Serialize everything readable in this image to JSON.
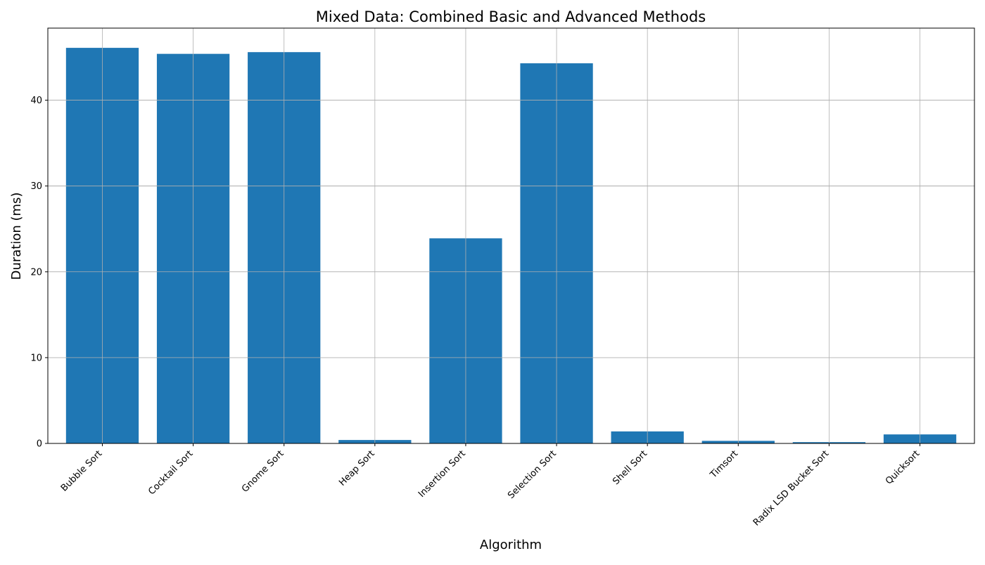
{
  "chart_data": {
    "type": "bar",
    "title": "Mixed Data: Combined Basic and Advanced Methods",
    "xlabel": "Algorithm",
    "ylabel": "Duration (ms)",
    "categories": [
      "Bubble Sort",
      "Cocktail Sort",
      "Gnome Sort",
      "Heap Sort",
      "Insertion Sort",
      "Selection Sort",
      "Shell Sort",
      "Timsort",
      "Radix LSD Bucket Sort",
      "Quicksort"
    ],
    "values": [
      46.1,
      45.4,
      45.6,
      0.4,
      23.9,
      44.3,
      1.4,
      0.3,
      0.15,
      1.05
    ],
    "ylim": [
      0,
      48.4
    ],
    "yticks": [
      0,
      10,
      20,
      30,
      40
    ],
    "grid": true,
    "bar_color": "#1f77b4",
    "grid_color": "#b0b0b0"
  }
}
